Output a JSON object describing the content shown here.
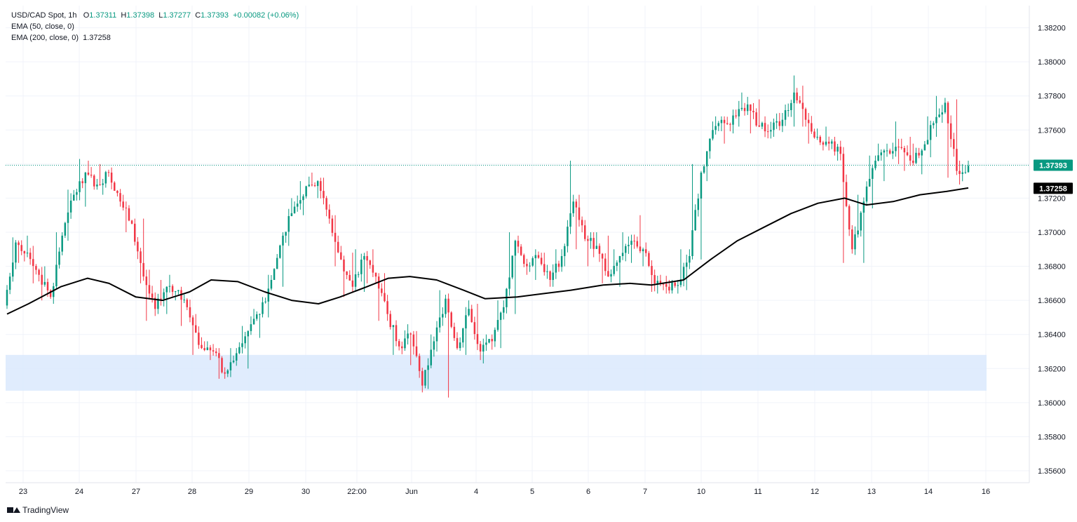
{
  "header": {
    "symbol": "USD/CAD Spot, 1h",
    "open_label": "O",
    "open": "1.37311",
    "high_label": "H",
    "high": "1.37398",
    "low_label": "L",
    "low": "1.37277",
    "close_label": "C",
    "close": "1.37393",
    "change": "+0.00082 (+0.06%)",
    "ema50_label": "EMA (50, close, 0)",
    "ema200_label": "EMA (200, close, 0)",
    "ema200_value": "1.37258"
  },
  "footer": {
    "brand": "TradingView"
  },
  "colors": {
    "up": "#089981",
    "down": "#f23645",
    "ema200": "#000000",
    "support_zone": "#dbe9fd",
    "grid": "#f0f3fa",
    "price_badge": "#089981",
    "ema_badge": "#000000"
  },
  "chart_data": {
    "type": "candlestick",
    "ylim": [
      1.3553,
      1.3833
    ],
    "y_ticks": [
      "1.38200",
      "1.38000",
      "1.37800",
      "1.37600",
      "1.37400",
      "1.37200",
      "1.37000",
      "1.36800",
      "1.36600",
      "1.36400",
      "1.36200",
      "1.36000",
      "1.35800",
      "1.35600"
    ],
    "x_ticks": [
      "23",
      "24",
      "27",
      "28",
      "29",
      "30",
      "22:00",
      "Jun",
      "4",
      "5",
      "6",
      "7",
      "10",
      "11",
      "12",
      "13",
      "14",
      "16"
    ],
    "last_price": "1.37393",
    "ema200_last": "1.37258",
    "support_zone": [
      1.3607,
      1.3628
    ],
    "dotted_price_line": 1.37393,
    "candles_ohlc_keyframes": [
      [
        1.3657,
        1.3697,
        1.3655,
        1.3694
      ],
      [
        1.3694,
        1.3698,
        1.3682,
        1.3688
      ],
      [
        1.3688,
        1.3692,
        1.367,
        1.3675
      ],
      [
        1.3675,
        1.368,
        1.366,
        1.3662
      ],
      [
        1.3662,
        1.37,
        1.3658,
        1.3698
      ],
      [
        1.3698,
        1.3725,
        1.3695,
        1.3722
      ],
      [
        1.3722,
        1.3743,
        1.3715,
        1.3735
      ],
      [
        1.3735,
        1.3742,
        1.3725,
        1.3728
      ],
      [
        1.3728,
        1.374,
        1.3722,
        1.3735
      ],
      [
        1.3735,
        1.3738,
        1.3715,
        1.3718
      ],
      [
        1.3718,
        1.3722,
        1.37,
        1.3705
      ],
      [
        1.3705,
        1.3708,
        1.367,
        1.3674
      ],
      [
        1.3674,
        1.3678,
        1.3648,
        1.3655
      ],
      [
        1.3655,
        1.3672,
        1.3652,
        1.3668
      ],
      [
        1.3668,
        1.3675,
        1.366,
        1.3666
      ],
      [
        1.3666,
        1.3668,
        1.3645,
        1.365
      ],
      [
        1.365,
        1.3652,
        1.3628,
        1.3632
      ],
      [
        1.3632,
        1.3636,
        1.3625,
        1.363
      ],
      [
        1.363,
        1.3632,
        1.3614,
        1.3617
      ],
      [
        1.3617,
        1.3632,
        1.3615,
        1.3629
      ],
      [
        1.3629,
        1.3645,
        1.362,
        1.3642
      ],
      [
        1.3642,
        1.3655,
        1.3638,
        1.3652
      ],
      [
        1.3652,
        1.3675,
        1.365,
        1.3672
      ],
      [
        1.3672,
        1.37,
        1.3668,
        1.3698
      ],
      [
        1.3698,
        1.372,
        1.3692,
        1.3715
      ],
      [
        1.3715,
        1.373,
        1.371,
        1.3727
      ],
      [
        1.3727,
        1.3735,
        1.372,
        1.373
      ],
      [
        1.373,
        1.3732,
        1.3705,
        1.3708
      ],
      [
        1.3708,
        1.371,
        1.368,
        1.3684
      ],
      [
        1.3684,
        1.3688,
        1.3662,
        1.3668
      ],
      [
        1.3668,
        1.369,
        1.3665,
        1.3686
      ],
      [
        1.3686,
        1.369,
        1.367,
        1.3674
      ],
      [
        1.3674,
        1.3676,
        1.3648,
        1.3652
      ],
      [
        1.3652,
        1.3654,
        1.3628,
        1.3633
      ],
      [
        1.3633,
        1.3646,
        1.3622,
        1.364
      ],
      [
        1.364,
        1.3642,
        1.3606,
        1.361
      ],
      [
        1.361,
        1.364,
        1.3608,
        1.3636
      ],
      [
        1.3636,
        1.3666,
        1.363,
        1.3661
      ],
      [
        1.3661,
        1.3664,
        1.3603,
        1.3632
      ],
      [
        1.3632,
        1.366,
        1.3628,
        1.3655
      ],
      [
        1.3655,
        1.3658,
        1.3625,
        1.363
      ],
      [
        1.363,
        1.364,
        1.3623,
        1.3636
      ],
      [
        1.3636,
        1.366,
        1.3632,
        1.3656
      ],
      [
        1.3656,
        1.37,
        1.3652,
        1.3695
      ],
      [
        1.3695,
        1.3698,
        1.3675,
        1.368
      ],
      [
        1.368,
        1.369,
        1.3672,
        1.3685
      ],
      [
        1.3685,
        1.3688,
        1.3668,
        1.3672
      ],
      [
        1.3672,
        1.369,
        1.3668,
        1.3686
      ],
      [
        1.3686,
        1.3742,
        1.368,
        1.3718
      ],
      [
        1.3718,
        1.3722,
        1.369,
        1.3696
      ],
      [
        1.3696,
        1.37,
        1.368,
        1.3692
      ],
      [
        1.3692,
        1.3698,
        1.367,
        1.3674
      ],
      [
        1.3674,
        1.369,
        1.3668,
        1.3686
      ],
      [
        1.3686,
        1.37,
        1.3682,
        1.3695
      ],
      [
        1.3695,
        1.371,
        1.368,
        1.369
      ],
      [
        1.369,
        1.3694,
        1.3665,
        1.367
      ],
      [
        1.367,
        1.3675,
        1.3664,
        1.3668
      ],
      [
        1.3668,
        1.3672,
        1.3664,
        1.3669
      ],
      [
        1.3669,
        1.369,
        1.3666,
        1.3686
      ],
      [
        1.3686,
        1.374,
        1.3684,
        1.3735
      ],
      [
        1.3735,
        1.3765,
        1.373,
        1.376
      ],
      [
        1.376,
        1.3768,
        1.3752,
        1.3764
      ],
      [
        1.3764,
        1.3772,
        1.3758,
        1.3768
      ],
      [
        1.3768,
        1.3782,
        1.3762,
        1.3775
      ],
      [
        1.3775,
        1.3778,
        1.3758,
        1.3762
      ],
      [
        1.3762,
        1.3768,
        1.3755,
        1.376
      ],
      [
        1.376,
        1.377,
        1.3756,
        1.3766
      ],
      [
        1.3766,
        1.3792,
        1.3762,
        1.3782
      ],
      [
        1.3782,
        1.3786,
        1.3762,
        1.3766
      ],
      [
        1.3766,
        1.377,
        1.3752,
        1.3756
      ],
      [
        1.3756,
        1.3762,
        1.3748,
        1.3752
      ],
      [
        1.3752,
        1.3756,
        1.3742,
        1.3746
      ],
      [
        1.3746,
        1.375,
        1.3682,
        1.369
      ],
      [
        1.369,
        1.3722,
        1.3682,
        1.3718
      ],
      [
        1.3718,
        1.3745,
        1.3714,
        1.3742
      ],
      [
        1.3742,
        1.3752,
        1.373,
        1.3748
      ],
      [
        1.3748,
        1.3765,
        1.374,
        1.375
      ],
      [
        1.375,
        1.3756,
        1.3736,
        1.3742
      ],
      [
        1.3742,
        1.3752,
        1.3734,
        1.3748
      ],
      [
        1.3748,
        1.3768,
        1.3744,
        1.3764
      ],
      [
        1.3764,
        1.378,
        1.3756,
        1.3776
      ],
      [
        1.3776,
        1.3778,
        1.3732,
        1.3736
      ],
      [
        1.3736,
        1.3742,
        1.3728,
        1.3739
      ]
    ],
    "ema200_keyframes": [
      [
        0,
        1.3652
      ],
      [
        8,
        1.3658
      ],
      [
        20,
        1.3668
      ],
      [
        30,
        1.3673
      ],
      [
        38,
        1.367
      ],
      [
        48,
        1.3662
      ],
      [
        58,
        1.366
      ],
      [
        68,
        1.3665
      ],
      [
        76,
        1.3672
      ],
      [
        86,
        1.3671
      ],
      [
        96,
        1.3665
      ],
      [
        106,
        1.366
      ],
      [
        116,
        1.3658
      ],
      [
        124,
        1.3662
      ],
      [
        134,
        1.3668
      ],
      [
        142,
        1.3673
      ],
      [
        150,
        1.3674
      ],
      [
        160,
        1.3672
      ],
      [
        170,
        1.3666
      ],
      [
        178,
        1.3661
      ],
      [
        190,
        1.3662
      ],
      [
        200,
        1.3664
      ],
      [
        210,
        1.3666
      ],
      [
        222,
        1.3669
      ],
      [
        232,
        1.367
      ],
      [
        240,
        1.3669
      ],
      [
        252,
        1.3672
      ],
      [
        262,
        1.3684
      ],
      [
        272,
        1.3695
      ],
      [
        282,
        1.3703
      ],
      [
        292,
        1.3711
      ],
      [
        302,
        1.3717
      ],
      [
        312,
        1.372
      ],
      [
        320,
        1.3716
      ],
      [
        330,
        1.3718
      ],
      [
        340,
        1.3722
      ],
      [
        350,
        1.3724
      ],
      [
        358,
        1.3726
      ]
    ]
  }
}
